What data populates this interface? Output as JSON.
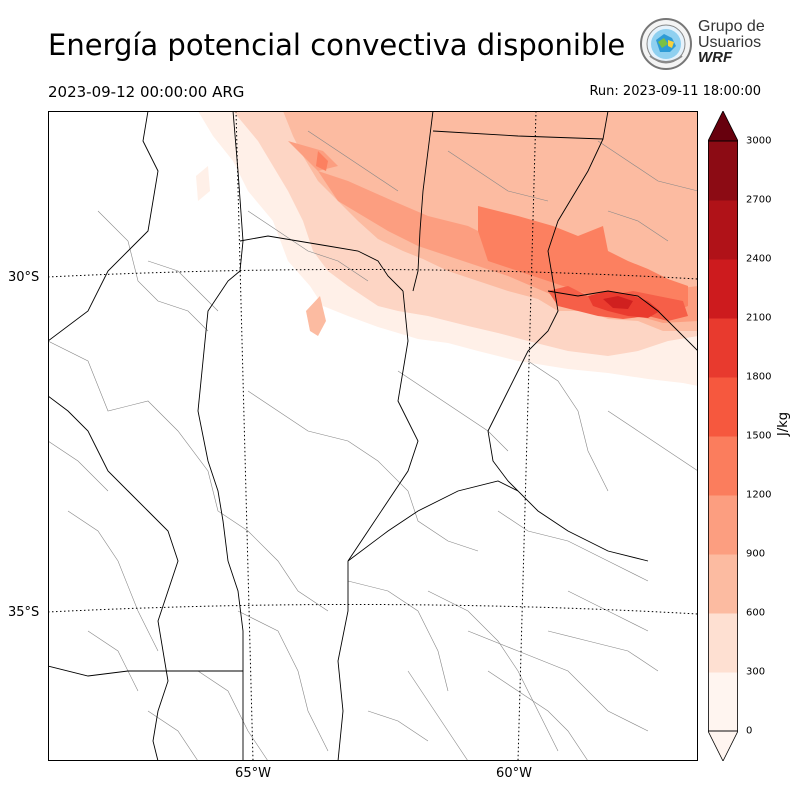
{
  "header": {
    "title": "Energía potencial convectiva disponible",
    "valid_time": "2023-09-12 00:00:00 ARG",
    "run_time": "Run: 2023-09-11 18:00:00"
  },
  "logo": {
    "line1": "Grupo de",
    "line2": "Usuarios",
    "line3": "WRF"
  },
  "map": {
    "field": "CAPE",
    "lat_labels": [
      "30°S",
      "35°S"
    ],
    "lon_labels": [
      "65°W",
      "60°W"
    ],
    "graticule": "dotted",
    "colors": {
      "border": "#000000",
      "department_lines": "#888888",
      "shading": [
        "#fff0e8",
        "#fdd5c4",
        "#fcbba1",
        "#fc9e80",
        "#fc8060",
        "#f65f48",
        "#ea3b2e",
        "#d0201f"
      ]
    }
  },
  "colorbar": {
    "unit": "J/kg",
    "ticks": [
      "0",
      "300",
      "600",
      "900",
      "1200",
      "1500",
      "1800",
      "2100",
      "2400",
      "2700",
      "3000"
    ],
    "levels": [
      0,
      300,
      600,
      900,
      1200,
      1500,
      1800,
      2100,
      2400,
      2700,
      3000
    ],
    "colors": [
      "#fff5f0",
      "#fee0d2",
      "#fcbba1",
      "#fc9e80",
      "#fb7d5d",
      "#f6583e",
      "#e83a2e",
      "#cd1b1e",
      "#b01218",
      "#8c0b14",
      "#67000d"
    ],
    "extend": "both"
  }
}
